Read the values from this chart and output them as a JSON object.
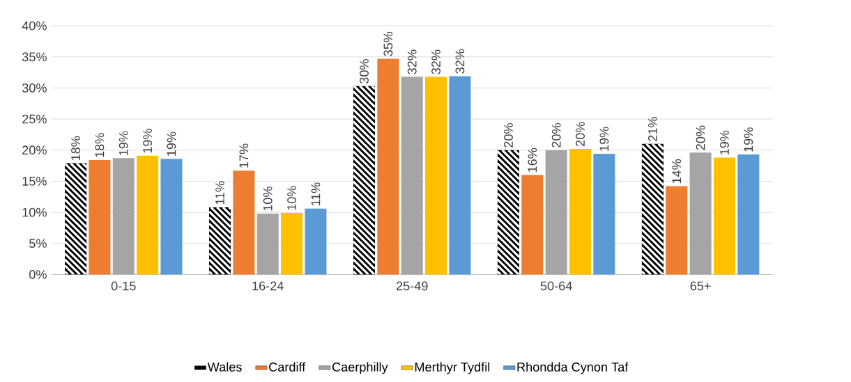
{
  "chart_data": {
    "type": "bar",
    "categories": [
      "0-15",
      "16-24",
      "25-49",
      "50-64",
      "65+"
    ],
    "series": [
      {
        "name": "Wales",
        "color": "#000000",
        "values": [
          17.9,
          10.8,
          30.3,
          20.0,
          21.0
        ],
        "value_labels": [
          "18%",
          "11%",
          "30%",
          "20%",
          "21%"
        ]
      },
      {
        "name": "Cardiff",
        "color": "#ed7d31",
        "values": [
          18.4,
          16.7,
          34.7,
          16.0,
          14.2
        ],
        "value_labels": [
          "18%",
          "17%",
          "35%",
          "16%",
          "14%"
        ]
      },
      {
        "name": "Caerphilly",
        "color": "#a5a5a5",
        "values": [
          18.7,
          9.8,
          31.8,
          20.0,
          19.6
        ],
        "value_labels": [
          "19%",
          "10%",
          "32%",
          "20%",
          "20%"
        ]
      },
      {
        "name": "Merthyr Tydfil",
        "color": "#ffc000",
        "values": [
          19.1,
          9.9,
          31.8,
          20.2,
          18.8
        ],
        "value_labels": [
          "19%",
          "10%",
          "32%",
          "20%",
          "19%"
        ]
      },
      {
        "name": "Rhondda Cynon Taf",
        "color": "#5b9bd5",
        "values": [
          18.6,
          10.6,
          31.9,
          19.4,
          19.3
        ],
        "value_labels": [
          "19%",
          "11%",
          "32%",
          "19%",
          "19%"
        ]
      }
    ],
    "ylim": [
      0,
      40
    ],
    "yticks": [
      {
        "value": 0,
        "label": "0%"
      },
      {
        "value": 5,
        "label": "5%"
      },
      {
        "value": 10,
        "label": "10%"
      },
      {
        "value": 15,
        "label": "15%"
      },
      {
        "value": 20,
        "label": "20%"
      },
      {
        "value": 25,
        "label": "25%"
      },
      {
        "value": 30,
        "label": "30%"
      },
      {
        "value": 35,
        "label": "35%"
      },
      {
        "value": 40,
        "label": "40%"
      }
    ],
    "grid": "y",
    "legend": "bottom"
  }
}
